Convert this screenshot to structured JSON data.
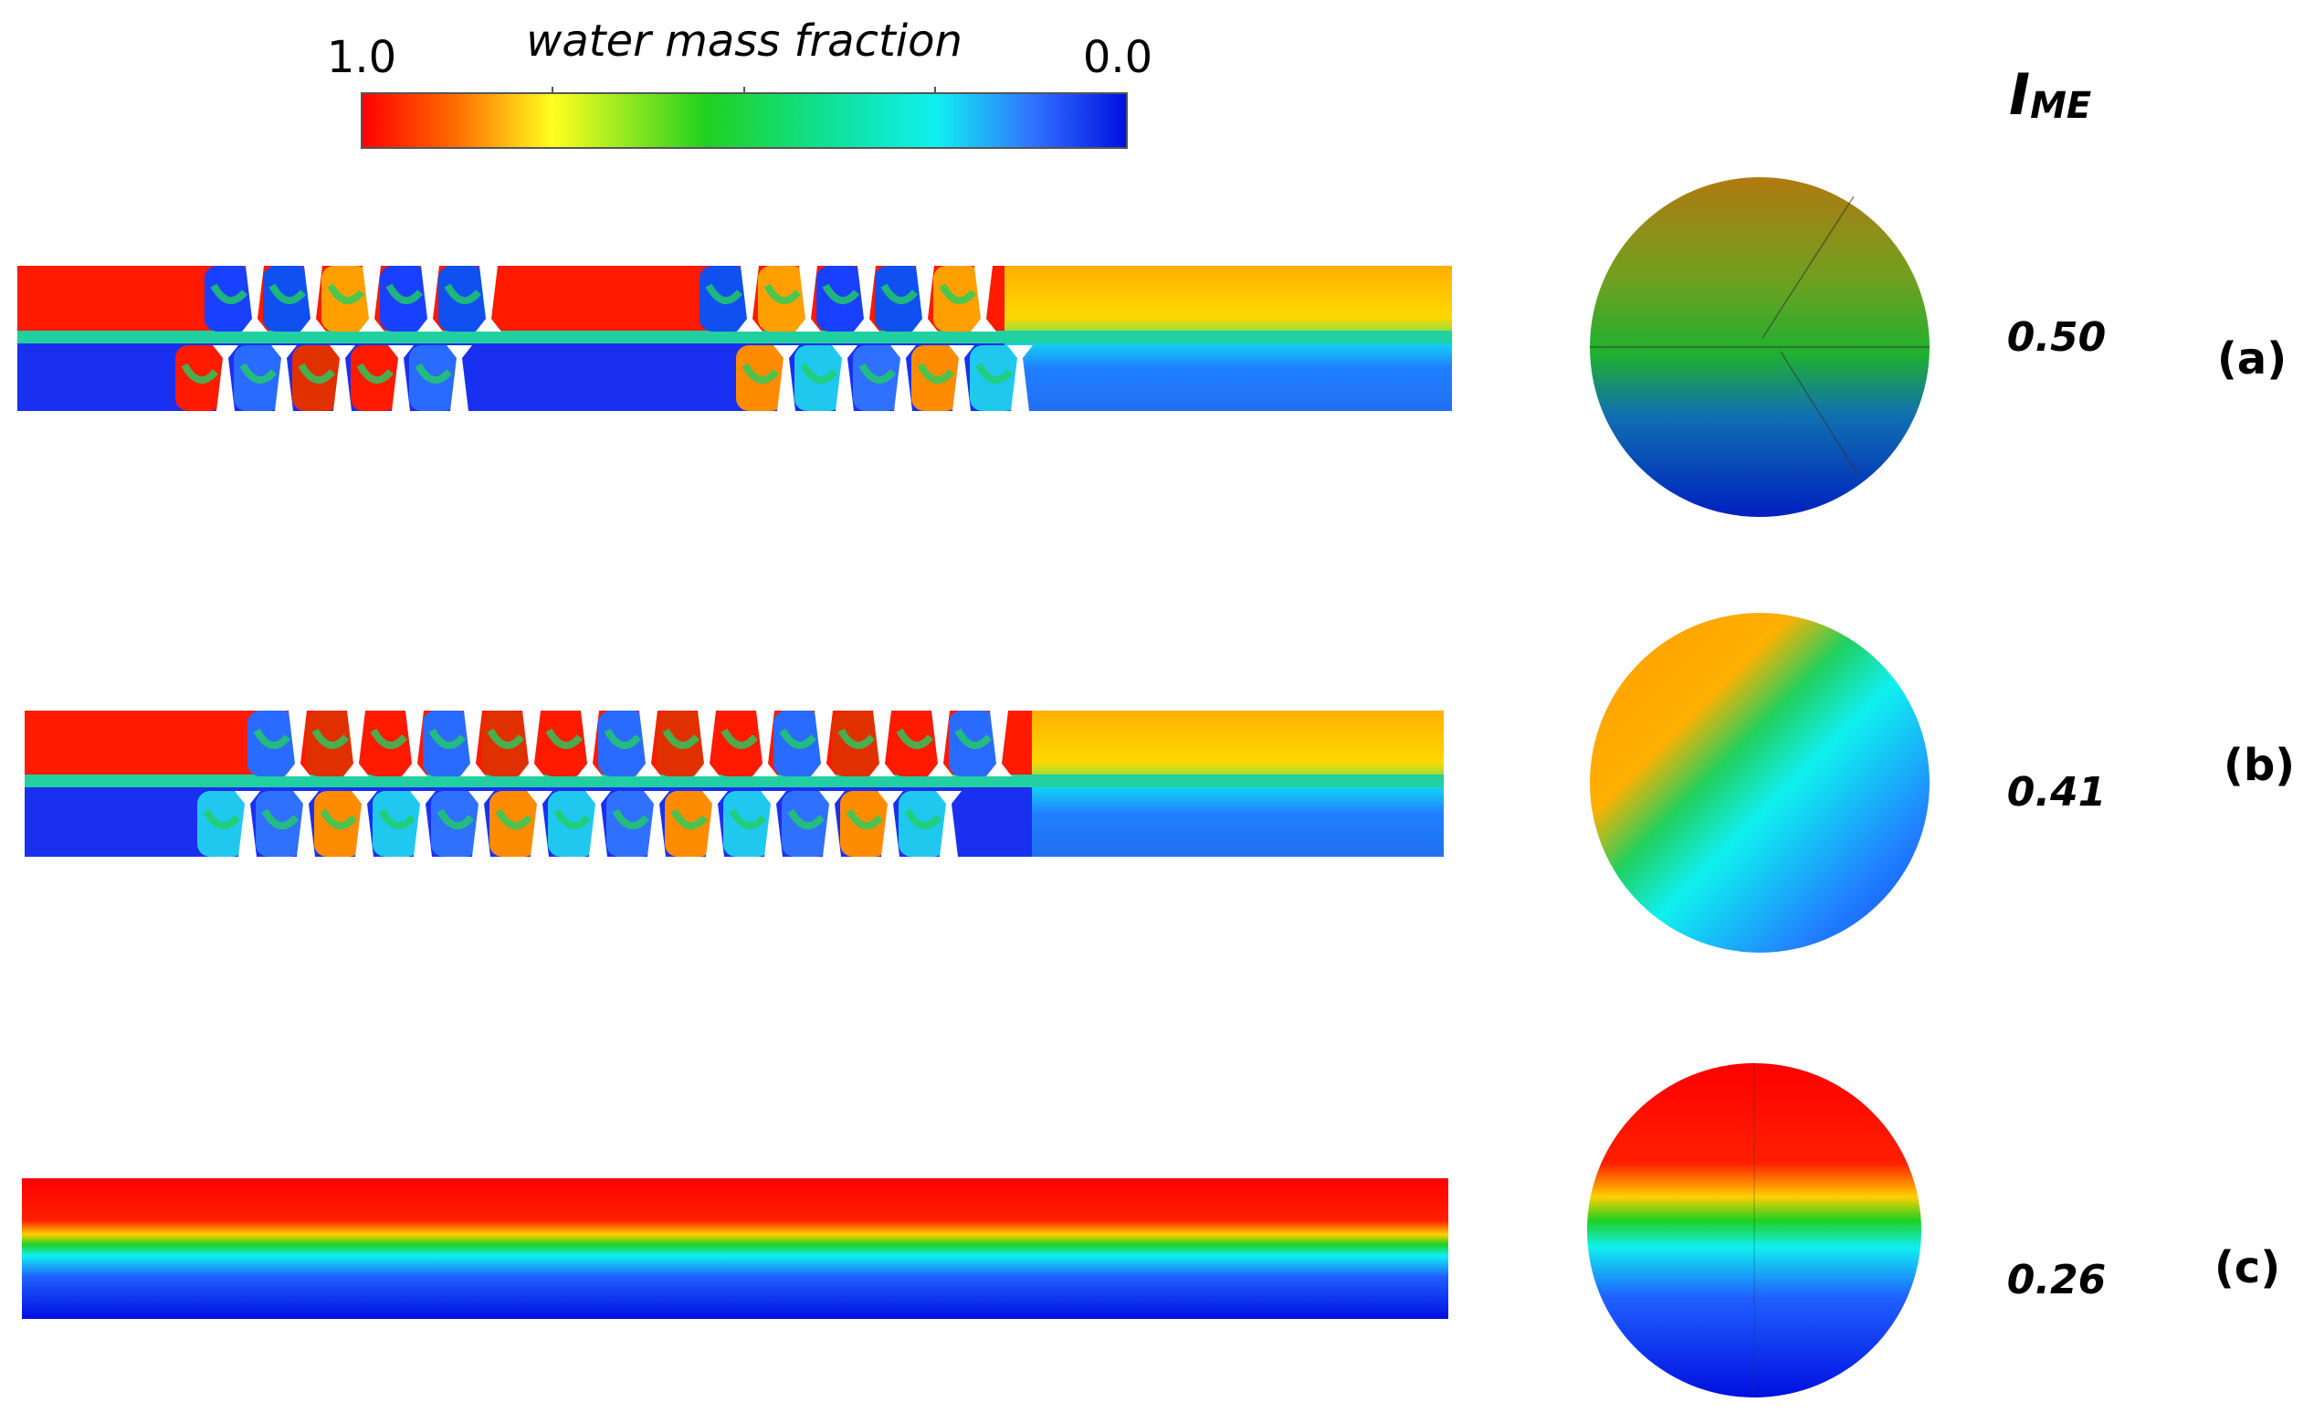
{
  "colorbar": {
    "title": "water mass fraction",
    "max_label": "1.0",
    "min_label": "0.0"
  },
  "index_label": {
    "main": "I",
    "subscript": "ME"
  },
  "panels": [
    {
      "label": "(a)",
      "value": "0.50"
    },
    {
      "label": "(b)",
      "value": "0.41"
    },
    {
      "label": "(c)",
      "value": "0.26"
    }
  ]
}
